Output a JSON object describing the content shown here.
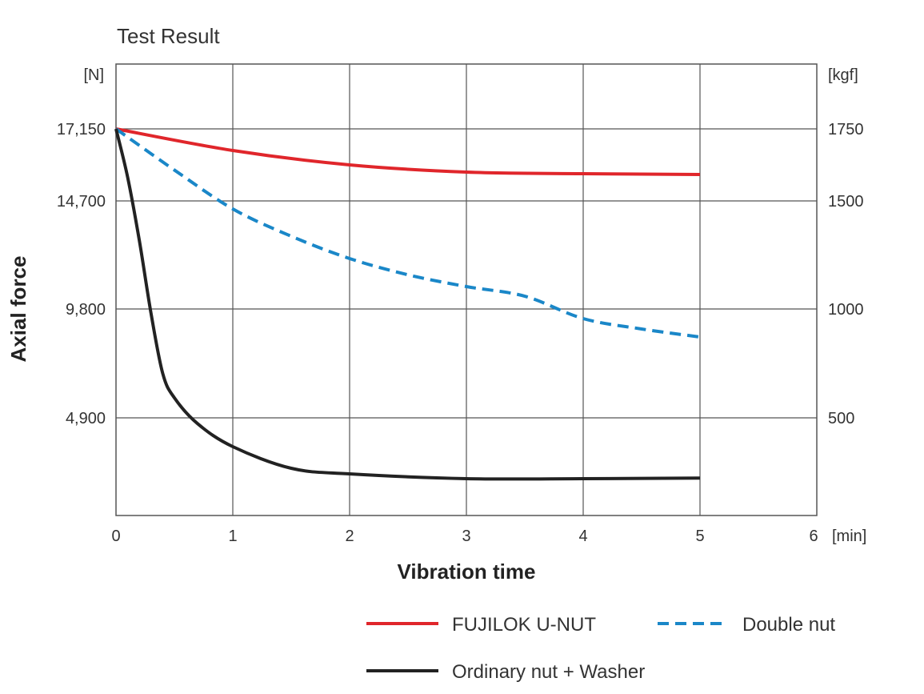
{
  "chart_data": {
    "type": "line",
    "title": "Test Result",
    "xlabel": "Vibration time",
    "ylabel": "Axial force",
    "y_left_unit": "[N]",
    "y_right_unit": "[kgf]",
    "x_unit": "[min]",
    "xlim": [
      0,
      6
    ],
    "x_ticks": [
      "0",
      "1",
      "2",
      "3",
      "4",
      "5",
      "6"
    ],
    "y_left_ticks": [
      {
        "value": 4900,
        "label": "4,900"
      },
      {
        "value": 9800,
        "label": "9,800"
      },
      {
        "value": 14700,
        "label": "14,700"
      },
      {
        "value": 17150,
        "label": "17,150"
      }
    ],
    "y_right_ticks": [
      "500",
      "1000",
      "1500",
      "1750"
    ],
    "grid": true,
    "legend_position": "bottom",
    "series": [
      {
        "name": "FUJILOK U-NUT",
        "color": "#e0262b",
        "style": "solid",
        "x": [
          0,
          1,
          2,
          3,
          4,
          5
        ],
        "y": [
          17150,
          16415,
          15925,
          15680,
          15626,
          15598
        ]
      },
      {
        "name": "Double nut",
        "color": "#1a87c8",
        "style": "dashed",
        "x": [
          0,
          0.5,
          1,
          1.5,
          2,
          2.5,
          3,
          3.5,
          4,
          4.5,
          5
        ],
        "y": [
          17150,
          15750,
          14337,
          13100,
          12087,
          11350,
          10816,
          10380,
          9368,
          8900,
          8539
        ]
      },
      {
        "name": "Ordinary nut + Washer",
        "color": "#222222",
        "style": "solid",
        "x": [
          0,
          0.1,
          0.2,
          0.3,
          0.4,
          0.5,
          0.7,
          1,
          1.5,
          2,
          3,
          4,
          5
        ],
        "y": [
          17150,
          15500,
          12900,
          9600,
          6900,
          5800,
          4600,
          3454,
          2370,
          2088,
          1848,
          1848,
          1880
        ]
      }
    ]
  }
}
